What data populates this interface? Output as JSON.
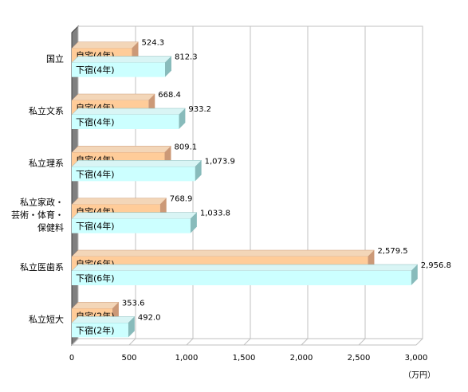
{
  "chart_data": {
    "type": "bar",
    "orientation": "horizontal",
    "categories": [
      [
        "国立"
      ],
      [
        "私立文系"
      ],
      [
        "私立理系"
      ],
      [
        "私立家政・",
        "芸術・体育・",
        "保健料"
      ],
      [
        "私立医歯系"
      ],
      [
        "私立短大"
      ]
    ],
    "series": [
      {
        "key": "home",
        "bar_labels": [
          "自宅(4年)",
          "自宅(4年)",
          "自宅(4年)",
          "自宅(4年)",
          "自宅(6年)",
          "自宅(2年)"
        ],
        "values": [
          524.3,
          668.4,
          809.1,
          768.9,
          2579.5,
          353.6
        ],
        "value_labels": [
          "524.3",
          "668.4",
          "809.1",
          "768.9",
          "2,579.5",
          "353.6"
        ]
      },
      {
        "key": "boarding",
        "bar_labels": [
          "下宿(4年)",
          "下宿(4年)",
          "下宿(4年)",
          "下宿(4年)",
          "下宿(6年)",
          "下宿(2年)"
        ],
        "values": [
          812.3,
          933.2,
          1073.9,
          1033.8,
          2956.8,
          492.0
        ],
        "value_labels": [
          "812.3",
          "933.2",
          "1,073.9",
          "1,033.8",
          "2,956.8",
          "492.0"
        ]
      }
    ],
    "x_ticks": [
      "0",
      "500",
      "1,000",
      "1,500",
      "2,000",
      "2,500",
      "3,000"
    ],
    "x_tick_values": [
      0,
      500,
      1000,
      1500,
      2000,
      2500,
      3000
    ],
    "xlim": [
      0,
      3000
    ],
    "unit": "（万円）",
    "grid": true,
    "colors": {
      "home_front": "#FFCC99",
      "home_top": "#F3D6B8",
      "home_side": "#CC9977",
      "boarding_front": "#CCFFFF",
      "boarding_top": "#D9F5F5",
      "boarding_side": "#88BBBB",
      "wall": "#FFFFFF",
      "wall_left": "#808080",
      "grid": "#C0C0C0"
    }
  }
}
